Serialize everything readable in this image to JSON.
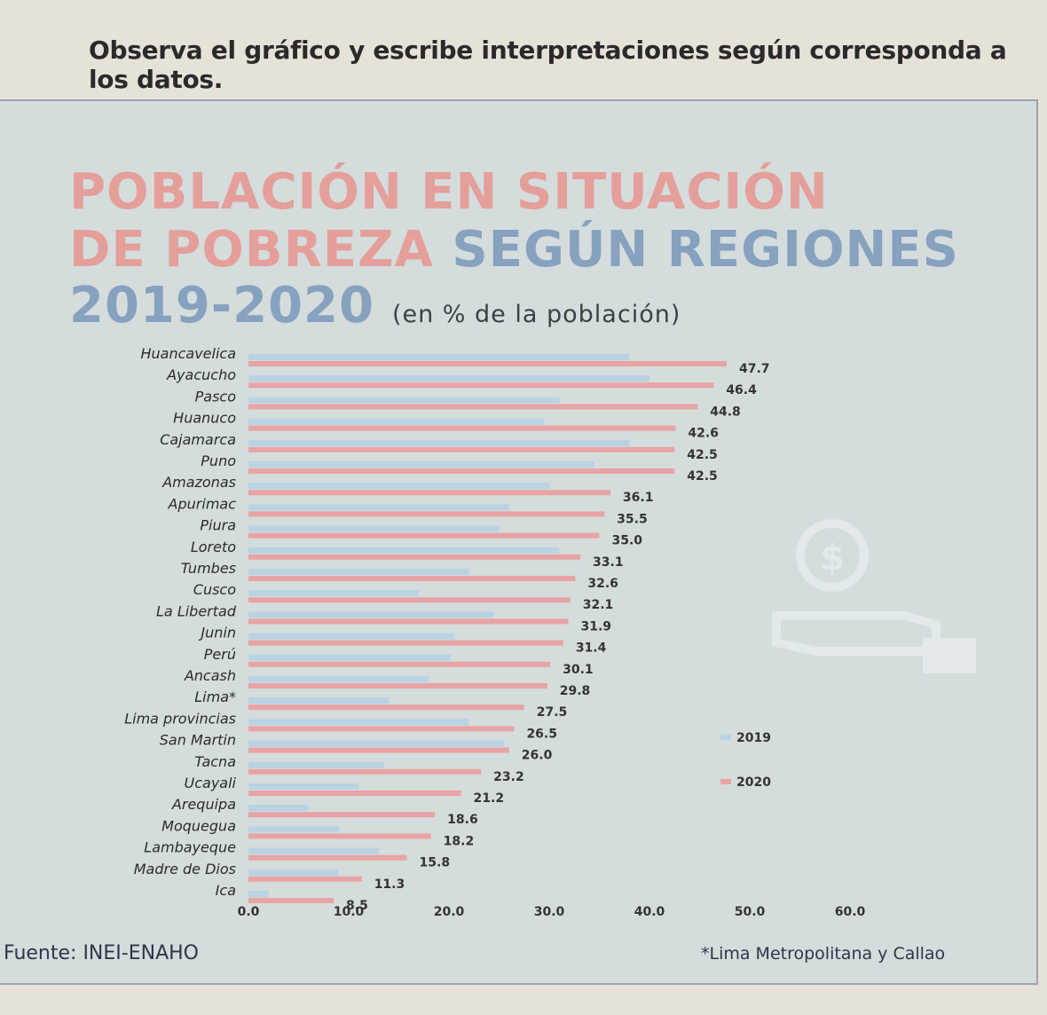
{
  "instruction": "Observa el gráfico y escribe interpretaciones según corresponda a los datos.",
  "title": {
    "line1": "POBLACIÓN EN SITUACIÓN",
    "line2_pink": "DE POBREZA",
    "line2_blue": "SEGÚN REGIONES",
    "line3": "2019-2020",
    "unit": "(en % de la población)"
  },
  "source": "Fuente: INEI-ENAHO",
  "note": "*Lima Metropolitana y Callao",
  "colors": {
    "pink": "#e8a3a4",
    "blue": "#b9d3e2",
    "label": "#2b2b2b"
  },
  "chart_data": {
    "type": "bar",
    "orientation": "horizontal",
    "title": "POBLACIÓN EN SITUACIÓN DE POBREZA SEGÚN REGIONES 2019-2020",
    "xlabel": "",
    "ylabel": "",
    "xlim": [
      0,
      60
    ],
    "ticks": [
      "0.0",
      "10.0",
      "20.0",
      "30.0",
      "40.0",
      "50.0",
      "60.0"
    ],
    "tick_values": [
      0,
      10,
      20,
      30,
      40,
      50,
      60
    ],
    "legend": [
      "2019",
      "2020"
    ],
    "legend_position": "right",
    "categories": [
      "Huancavelica",
      "Ayacucho",
      "Pasco",
      "Huanuco",
      "Cajamarca",
      "Puno",
      "Amazonas",
      "Apurimac",
      "Piura",
      "Loreto",
      "Tumbes",
      "Cusco",
      "La Libertad",
      "Junin",
      "Perú",
      "Ancash",
      "Lima*",
      "Lima provincias",
      "San Martin",
      "Tacna",
      "Ucayali",
      "Arequipa",
      "Moquegua",
      "Lambayeque",
      "Madre de Dios",
      "Ica"
    ],
    "series": [
      {
        "name": "2019",
        "values": [
          38.0,
          40.0,
          31.0,
          29.5,
          38.0,
          34.5,
          30.0,
          26.0,
          25.0,
          31.0,
          22.0,
          17.0,
          24.5,
          20.5,
          20.2,
          18.0,
          14.0,
          22.0,
          25.5,
          13.5,
          11.0,
          6.0,
          9.0,
          13.0,
          9.0,
          2.0
        ]
      },
      {
        "name": "2020",
        "values": [
          47.7,
          46.4,
          44.8,
          42.6,
          42.5,
          42.5,
          36.1,
          35.5,
          35.0,
          33.1,
          32.6,
          32.1,
          31.9,
          31.4,
          30.1,
          29.8,
          27.5,
          26.5,
          26.0,
          23.2,
          21.2,
          18.6,
          18.2,
          15.8,
          11.3,
          8.5
        ]
      }
    ],
    "data_labels": [
      "47.7",
      "46.4",
      "44.8",
      "42.6",
      "42.5",
      "42.5",
      "36.1",
      "35.5",
      "35.0",
      "33.1",
      "32.6",
      "32.1",
      "31.9",
      "31.4",
      "30.1",
      "29.8",
      "27.5",
      "26.5",
      "26.0",
      "23.2",
      "21.2",
      "18.6",
      "18.2",
      "15.8",
      "11.3",
      "8.5"
    ]
  }
}
